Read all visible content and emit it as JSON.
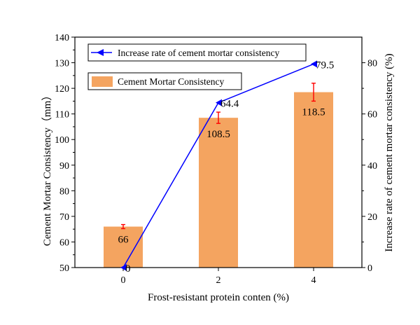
{
  "chart_data": {
    "type": "bar",
    "categories": [
      "0",
      "2",
      "4"
    ],
    "xlabel": "Frost-resistant protein conten (%)",
    "ylabel_left": "Cement Mortar Consistency（mm）",
    "ylabel_right": "Increase rate of cement mortar consistency (%)",
    "ylim_left": [
      50,
      140
    ],
    "ylim_right": [
      0,
      90
    ],
    "yticks_left": [
      "50",
      "60",
      "70",
      "80",
      "90",
      "100",
      "110",
      "120",
      "130",
      "140"
    ],
    "yticks_right": [
      "0",
      "20",
      "40",
      "60",
      "80"
    ],
    "grid": false,
    "legend_placement": "top-left",
    "series": [
      {
        "name": "Cement Mortar Consistency",
        "kind": "bar",
        "axis": "left",
        "values": [
          66,
          108.5,
          118.5
        ],
        "labels": [
          "66",
          "108.5",
          "118.5"
        ],
        "errors": [
          0.8,
          2.2,
          3.5
        ],
        "color": "#f4a460",
        "error_color": "#ff0000"
      },
      {
        "name": "Increase rate of cement mortar consistency",
        "kind": "line",
        "axis": "right",
        "values": [
          0,
          64.4,
          79.5
        ],
        "labels": [
          "0",
          "64.4",
          "79.5"
        ],
        "color": "#0000ff"
      }
    ]
  }
}
